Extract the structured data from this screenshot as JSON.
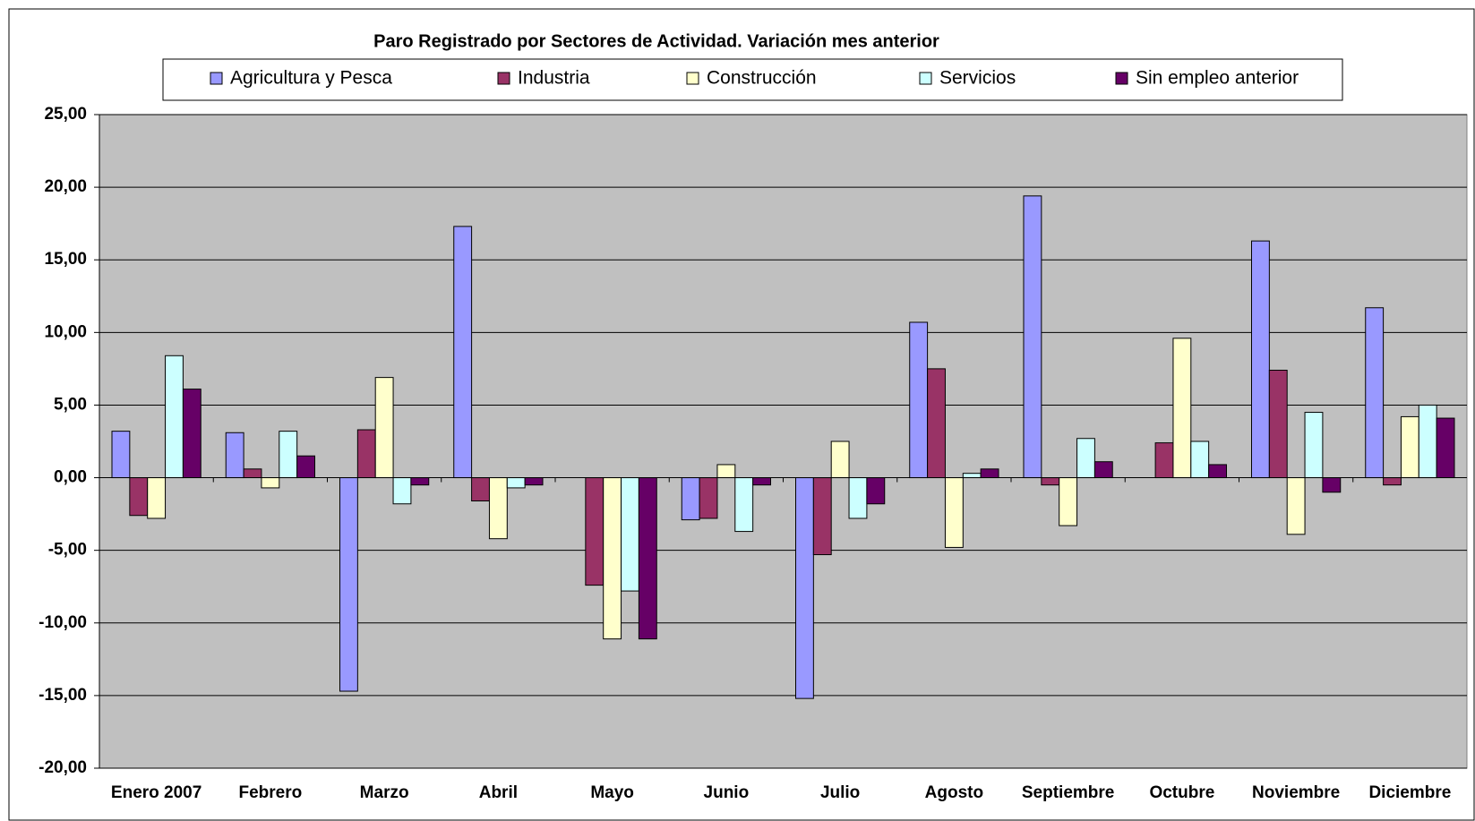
{
  "chart_data": {
    "type": "bar",
    "title": "Paro Registrado por Sectores de Actividad. Variación mes anterior",
    "categories": [
      "Enero 2007",
      "Febrero",
      "Marzo",
      "Abril",
      "Mayo",
      "Junio",
      "Julio",
      "Agosto",
      "Septiembre",
      "Octubre",
      "Noviembre",
      "Diciembre"
    ],
    "series": [
      {
        "name": "Agricultura y Pesca",
        "color": "#9999ff",
        "values": [
          3.2,
          3.1,
          -14.7,
          17.3,
          0,
          -2.9,
          -15.2,
          10.7,
          19.4,
          0,
          16.3,
          11.7
        ]
      },
      {
        "name": "Industria",
        "color": "#993366",
        "values": [
          -2.6,
          0.6,
          3.3,
          -1.6,
          -7.4,
          -2.8,
          -5.3,
          7.5,
          -0.5,
          2.4,
          7.4,
          -0.5
        ]
      },
      {
        "name": "Construcción",
        "color": "#ffffcc",
        "values": [
          -2.8,
          -0.7,
          6.9,
          -4.2,
          -11.1,
          0.9,
          2.5,
          -4.8,
          -3.3,
          9.6,
          -3.9,
          4.2
        ]
      },
      {
        "name": "Servicios",
        "color": "#ccffff",
        "values": [
          8.4,
          3.2,
          -1.8,
          -0.7,
          -7.8,
          -3.7,
          -2.8,
          0.3,
          2.7,
          2.5,
          4.5,
          5.0
        ]
      },
      {
        "name": "Sin empleo anterior",
        "color": "#660066",
        "values": [
          6.1,
          1.5,
          -0.5,
          -0.5,
          -11.1,
          -0.5,
          -1.8,
          0.6,
          1.1,
          0.9,
          -1.0,
          4.1
        ]
      }
    ],
    "ylim": [
      -20,
      25
    ],
    "yticks": [
      {
        "value": -20,
        "label": "-20,00"
      },
      {
        "value": -15,
        "label": "-15,00"
      },
      {
        "value": -10,
        "label": "-10,00"
      },
      {
        "value": -5,
        "label": "-5,00"
      },
      {
        "value": 0,
        "label": "0,00"
      },
      {
        "value": 5,
        "label": "5,00"
      },
      {
        "value": 10,
        "label": "10,00"
      },
      {
        "value": 15,
        "label": "15,00"
      },
      {
        "value": 20,
        "label": "20,00"
      },
      {
        "value": 25,
        "label": "25,00"
      }
    ],
    "grid": true,
    "legend": "top"
  }
}
